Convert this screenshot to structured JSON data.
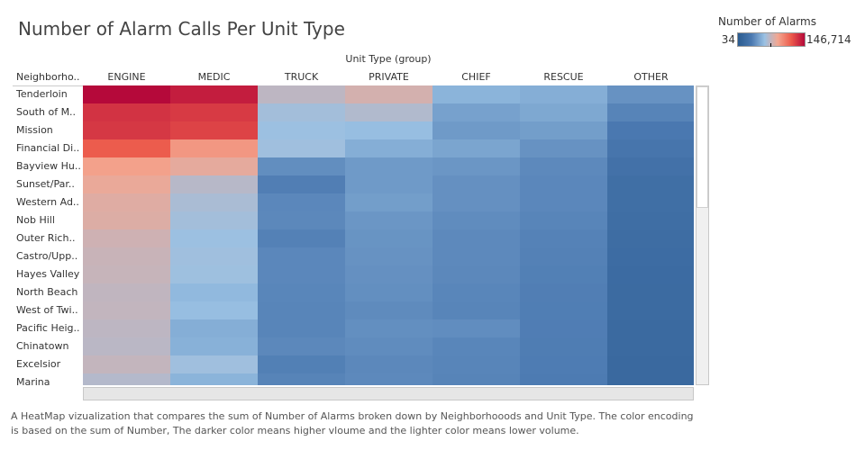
{
  "title": "Number of Alarm Calls Per Unit Type",
  "legend": {
    "title": "Number of Alarms",
    "min_label": "34",
    "max_label": "146,714",
    "colors": [
      "#2b5b8f",
      "#4a78b0",
      "#9ac1e3",
      "#f3a690",
      "#ec5a4b",
      "#b5093a"
    ]
  },
  "caption": "A HeatMap vizualization  that compares the sum of Number of Alarms  broken down by Neighborhooods  and  Unit Type. The color encoding is based on the sum of Number, The darker color means higher vloume and the  lighter  color means lower volume.",
  "chart_data": {
    "type": "heatmap",
    "title": "Number of Alarm Calls Per Unit Type",
    "x_group_label": "Unit Type (group)",
    "row_header": "Neighborho..",
    "columns": [
      "ENGINE",
      "MEDIC",
      "TRUCK",
      "PRIVATE",
      "CHIEF",
      "RESCUE",
      "OTHER"
    ],
    "rows": [
      "Tenderloin",
      "South of M..",
      "Mission",
      "Financial Di..",
      "Bayview Hu..",
      "Sunset/Par..",
      "Western Ad..",
      "Nob Hill",
      "Outer Rich..",
      "Castro/Upp..",
      "Hayes Valley",
      "North Beach",
      "West of Twi..",
      "Pacific Heig..",
      "Chinatown",
      "Excelsior",
      "Marina"
    ],
    "color_range": [
      34,
      146714
    ],
    "values": [
      [
        146714,
        131000,
        22000,
        30000,
        9000,
        8000,
        4000
      ],
      [
        115000,
        110000,
        14000,
        18000,
        6000,
        7000,
        2500
      ],
      [
        112000,
        104000,
        12000,
        11000,
        5000,
        5500,
        1500
      ],
      [
        88000,
        52000,
        13000,
        8000,
        6500,
        4000,
        1200
      ],
      [
        47000,
        38000,
        3500,
        5000,
        4500,
        3000,
        900
      ],
      [
        40000,
        20000,
        2000,
        5000,
        3800,
        2800,
        700
      ],
      [
        35000,
        16000,
        2800,
        5500,
        3800,
        2800,
        700
      ],
      [
        34000,
        14000,
        2900,
        4500,
        3300,
        2600,
        650
      ],
      [
        28000,
        12000,
        2200,
        4200,
        3000,
        2300,
        600
      ],
      [
        26000,
        13000,
        2800,
        4000,
        3000,
        2200,
        550
      ],
      [
        25000,
        12500,
        2800,
        3800,
        2900,
        2100,
        500
      ],
      [
        23000,
        10000,
        2700,
        3600,
        2700,
        2000,
        480
      ],
      [
        23500,
        11000,
        2600,
        3200,
        2600,
        1950,
        460
      ],
      [
        22000,
        8000,
        2600,
        3600,
        3400,
        1900,
        440
      ],
      [
        21000,
        8500,
        2900,
        3300,
        2700,
        1850,
        420
      ],
      [
        24000,
        13000,
        2100,
        2900,
        2600,
        1800,
        400
      ],
      [
        19000,
        9000,
        2500,
        3000,
        2500,
        1700,
        380
      ]
    ]
  }
}
